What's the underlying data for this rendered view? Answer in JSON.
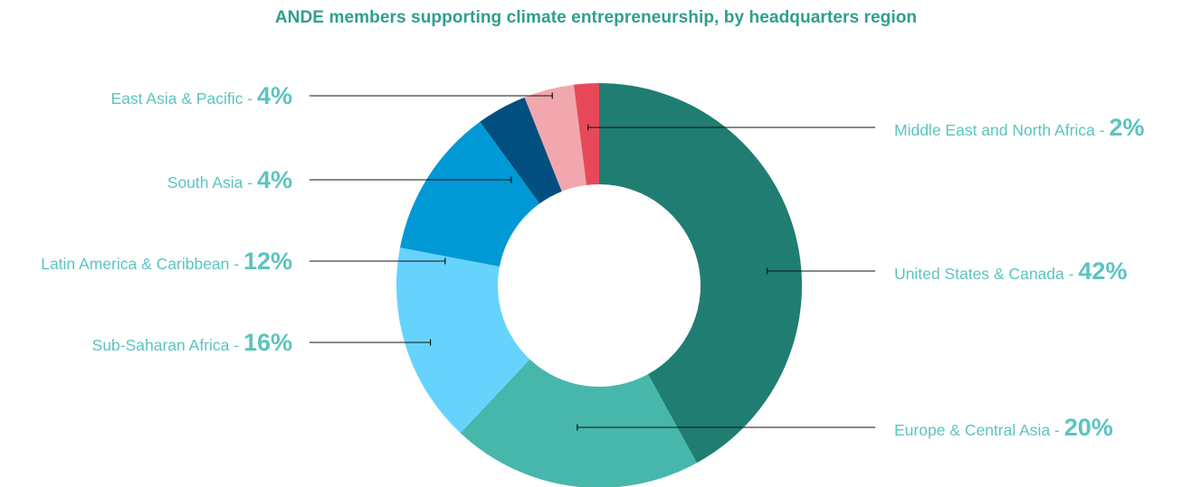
{
  "chart_data": {
    "type": "pie",
    "subtype": "donut",
    "title": "ANDE members supporting climate entrepreneurship, by headquarters region",
    "slices": [
      {
        "label": "United States & Canada",
        "value": 42,
        "display": "42%",
        "color": "#1f7d72",
        "side": "right"
      },
      {
        "label": "Europe & Central Asia",
        "value": 20,
        "display": "20%",
        "color": "#47b7ac",
        "side": "right"
      },
      {
        "label": "Sub-Saharan Africa",
        "value": 16,
        "display": "16%",
        "color": "#66d3fd",
        "side": "left"
      },
      {
        "label": "Latin America & Caribbean",
        "value": 12,
        "display": "12%",
        "color": "#0099d6",
        "side": "left"
      },
      {
        "label": "South Asia",
        "value": 4,
        "display": "4%",
        "color": "#004f80",
        "side": "left"
      },
      {
        "label": "East Asia & Pacific",
        "value": 4,
        "display": "4%",
        "color": "#f2a7ae",
        "side": "left"
      },
      {
        "label": "Middle East and North Africa",
        "value": 2,
        "display": "2%",
        "color": "#e8495a",
        "side": "right"
      }
    ]
  }
}
